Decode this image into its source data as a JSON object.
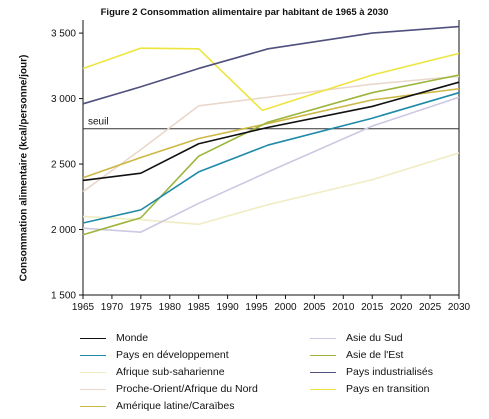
{
  "chart_data": {
    "type": "line",
    "title": "Figure 2 Consommation alimentaire par habitant de 1965 à 2030",
    "ylabel": "Consommation alimentaire (kcal/personne/jour)",
    "xlabel": "",
    "ylim": [
      1500,
      3600
    ],
    "xlim": [
      1965,
      2030
    ],
    "y_ticks": [
      1500,
      2000,
      2500,
      3000,
      3500
    ],
    "y_tick_labels": [
      "1 500",
      "2 000",
      "2 500",
      "3 000",
      "3 500"
    ],
    "x_ticks": [
      1965,
      1970,
      1975,
      1980,
      1985,
      1990,
      1995,
      2000,
      2005,
      2010,
      2015,
      2020,
      2025,
      2030
    ],
    "grid": false,
    "legend_position": "bottom",
    "annotations": [
      {
        "text": "seuil",
        "y": 2770
      }
    ],
    "series": [
      {
        "name": "Monde",
        "color": "#111111",
        "x": [
          1965,
          1975,
          1985,
          1997,
          2015,
          2030
        ],
        "y": [
          2375,
          2430,
          2655,
          2780,
          2940,
          3125
        ]
      },
      {
        "name": "Pays en développement",
        "color": "#1f8aa8",
        "x": [
          1965,
          1975,
          1985,
          1997,
          2015,
          2030
        ],
        "y": [
          2050,
          2150,
          2440,
          2645,
          2850,
          3045
        ]
      },
      {
        "name": "Afrique sub-saharienne",
        "color": "#f0ecc4",
        "x": [
          1965,
          1975,
          1985,
          1997,
          2015,
          2030
        ],
        "y": [
          2100,
          2075,
          2040,
          2190,
          2380,
          2585
        ]
      },
      {
        "name": "Proche-Orient/Afrique du Nord",
        "color": "#ead7cc",
        "x": [
          1965,
          1975,
          1985,
          1997,
          2015,
          2030
        ],
        "y": [
          2290,
          2610,
          2945,
          3010,
          3110,
          3170
        ]
      },
      {
        "name": "Amérique latine/Caraïbes",
        "color": "#cdb845",
        "x": [
          1965,
          1975,
          1985,
          1997,
          2015,
          2030
        ],
        "y": [
          2395,
          2550,
          2695,
          2810,
          2990,
          3075
        ]
      },
      {
        "name": "Asie du Sud",
        "color": "#cdc8e2",
        "x": [
          1965,
          1975,
          1985,
          1997,
          2015,
          2030
        ],
        "y": [
          2010,
          1980,
          2200,
          2440,
          2790,
          3010
        ]
      },
      {
        "name": "Asie de l'Est",
        "color": "#9cb53b",
        "x": [
          1965,
          1975,
          1985,
          1997,
          2015,
          2030
        ],
        "y": [
          1960,
          2090,
          2560,
          2820,
          3045,
          3180
        ]
      },
      {
        "name": "Pays industrialisés",
        "color": "#50507e",
        "x": [
          1965,
          1975,
          1985,
          1997,
          2015,
          2030
        ],
        "y": [
          2960,
          3090,
          3230,
          3380,
          3500,
          3550
        ]
      },
      {
        "name": "Pays en transition",
        "color": "#ede53d",
        "x": [
          1965,
          1975,
          1985,
          1996,
          2015,
          2030
        ],
        "y": [
          3230,
          3385,
          3380,
          2910,
          3180,
          3345
        ]
      }
    ]
  },
  "legend": {
    "col1": [
      "Monde",
      "Pays en développement",
      "Afrique sub-saharienne",
      "Proche-Orient/Afrique du Nord",
      "Amérique latine/Caraïbes"
    ],
    "col2": [
      "Asie du Sud",
      "Asie de l'Est",
      "Pays industrialisés",
      "Pays en transition"
    ]
  }
}
